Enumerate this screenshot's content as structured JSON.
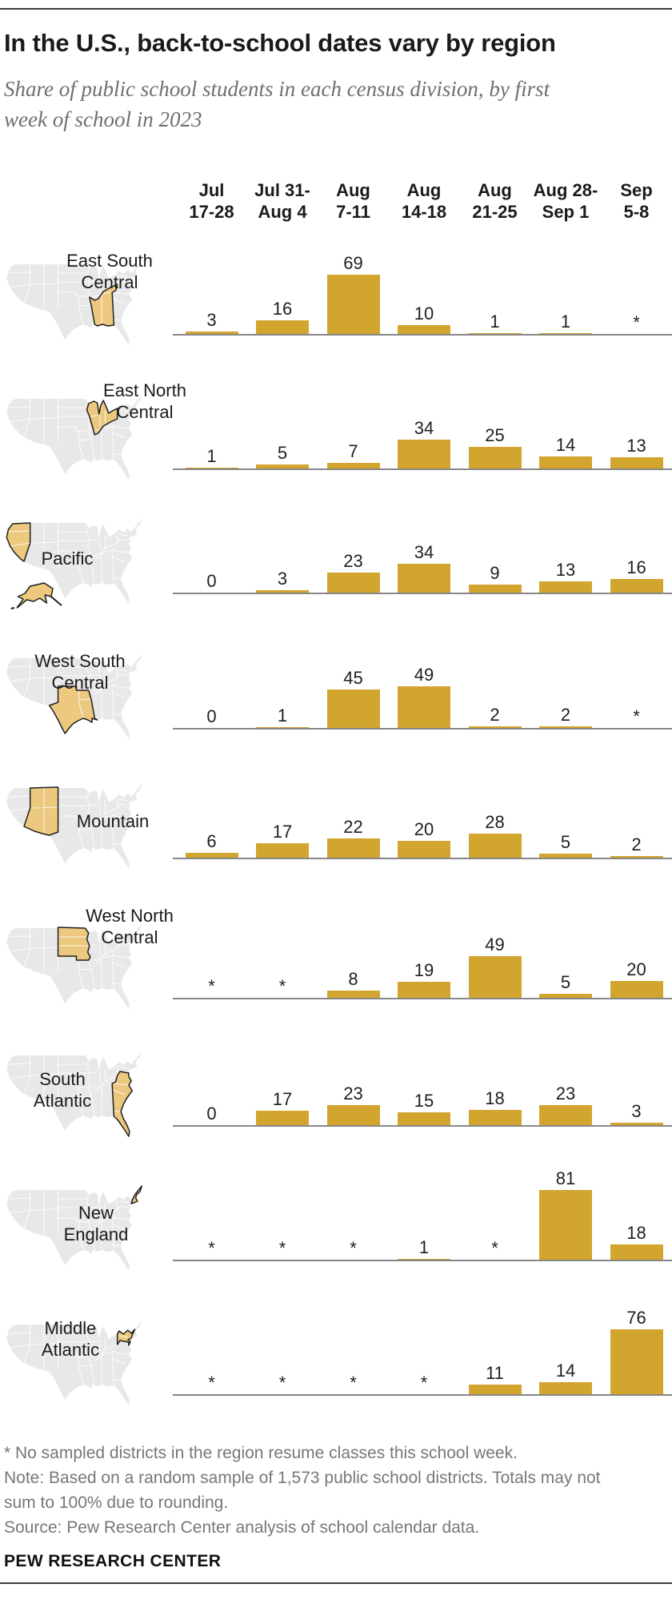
{
  "title": "In the U.S., back-to-school dates vary by region",
  "subtitle_lines": [
    "Share of public school students in each census division, by first",
    "week of school in 2023"
  ],
  "chart_data": {
    "type": "bar",
    "title": "Share of public school students in each census division, by first week of school in 2023",
    "categories": [
      "Jul 17-28",
      "Jul 31-Aug 4",
      "Aug 7-11",
      "Aug 14-18",
      "Aug 21-25",
      "Aug 28-Sep 1",
      "Sep 5-8"
    ],
    "category_lines": [
      [
        "Jul",
        "17-28"
      ],
      [
        "Jul 31-",
        "Aug 4"
      ],
      [
        "Aug",
        "7-11"
      ],
      [
        "Aug",
        "14-18"
      ],
      [
        "Aug",
        "21-25"
      ],
      [
        "Aug 28-",
        "Sep 1"
      ],
      [
        "Sep",
        "5-8"
      ]
    ],
    "value_unit": "% of public school students",
    "asterisk_meaning": "No sampled districts in the region resume classes this school week",
    "series": [
      {
        "name": "East South Central",
        "name_lines": [
          "East South",
          "Central"
        ],
        "region": "esc",
        "values": [
          "3",
          "16",
          "69",
          "10",
          "1",
          "1",
          "*"
        ]
      },
      {
        "name": "East North Central",
        "name_lines": [
          "East North",
          "Central"
        ],
        "region": "enc",
        "values": [
          "1",
          "5",
          "7",
          "34",
          "25",
          "14",
          "13"
        ]
      },
      {
        "name": "Pacific",
        "name_lines": [
          "Pacific"
        ],
        "region": "pac",
        "values": [
          "0",
          "3",
          "23",
          "34",
          "9",
          "13",
          "16"
        ]
      },
      {
        "name": "West South Central",
        "name_lines": [
          "West South",
          "Central"
        ],
        "region": "wsc",
        "values": [
          "0",
          "1",
          "45",
          "49",
          "2",
          "2",
          "*"
        ]
      },
      {
        "name": "Mountain",
        "name_lines": [
          "Mountain"
        ],
        "region": "mtn",
        "values": [
          "6",
          "17",
          "22",
          "20",
          "28",
          "5",
          "2"
        ]
      },
      {
        "name": "West North Central",
        "name_lines": [
          "West North",
          "Central"
        ],
        "region": "wnc",
        "values": [
          "*",
          "*",
          "8",
          "19",
          "49",
          "5",
          "20"
        ]
      },
      {
        "name": "South Atlantic",
        "name_lines": [
          "South",
          "Atlantic"
        ],
        "region": "satl",
        "values": [
          "0",
          "17",
          "23",
          "15",
          "18",
          "23",
          "3"
        ]
      },
      {
        "name": "New England",
        "name_lines": [
          "New",
          "England"
        ],
        "region": "neng",
        "values": [
          "*",
          "*",
          "*",
          "1",
          "*",
          "81",
          "18"
        ]
      },
      {
        "name": "Middle Atlantic",
        "name_lines": [
          "Middle",
          "Atlantic"
        ],
        "region": "matl",
        "values": [
          "*",
          "*",
          "*",
          "*",
          "11",
          "14",
          "76"
        ]
      }
    ]
  },
  "colors": {
    "bar": "#d2a52f",
    "region_fill": "#ecc97e",
    "region_outline": "#1f1f1f",
    "map_base": "#e8e8e8",
    "axis_line": "#878787"
  },
  "footnote_lines": [
    "* No sampled districts in the region resume classes this school week.",
    "Note: Based on a random sample of 1,573 public school districts. Totals may not",
    "sum to 100% due to rounding.",
    "Source: Pew Research Center analysis of school calendar data."
  ],
  "brand": "PEW RESEARCH CENTER"
}
